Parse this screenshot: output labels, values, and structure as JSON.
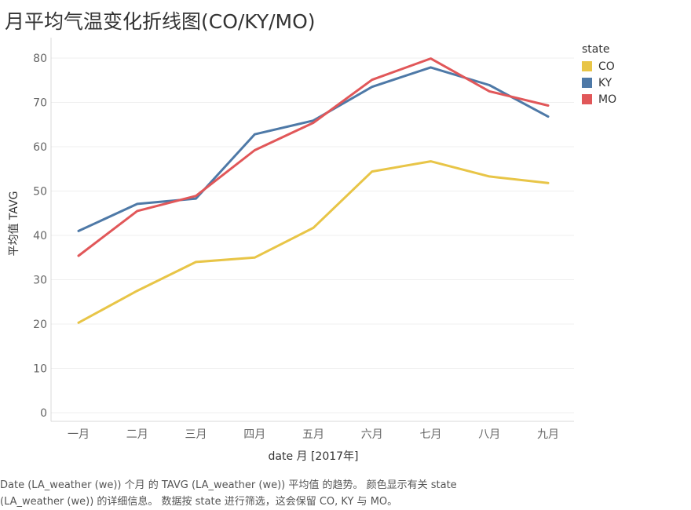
{
  "title": "月平均气温变化折线图(CO/KY/MO)",
  "legend": {
    "title": "state",
    "items": [
      {
        "label": "CO",
        "color": "#e8c547"
      },
      {
        "label": "KY",
        "color": "#4e79a7"
      },
      {
        "label": "MO",
        "color": "#e15759"
      }
    ]
  },
  "caption": {
    "line1": "Date (LA_weather (we)) 个月 的 TAVG (LA_weather (we)) 平均值 的趋势。 颜色显示有关 state",
    "line2": "(LA_weather (we)) 的详细信息。 数据按 state 进行筛选，这会保留 CO, KY 与 MO。"
  },
  "chart_data": {
    "type": "line",
    "xlabel": "date 月 [2017年]",
    "ylabel": "平均值 TAVG",
    "categories": [
      "一月",
      "二月",
      "三月",
      "四月",
      "五月",
      "六月",
      "七月",
      "八月",
      "九月"
    ],
    "yticks": [
      0,
      10,
      20,
      30,
      40,
      50,
      60,
      70,
      80
    ],
    "ylim": [
      0,
      82
    ],
    "grid": true,
    "legend_position": "right",
    "series": [
      {
        "name": "CO",
        "color": "#e8c547",
        "values": [
          20.3,
          27.5,
          34.0,
          35.0,
          41.7,
          54.4,
          56.7,
          53.3,
          51.8
        ]
      },
      {
        "name": "KY",
        "color": "#4e79a7",
        "values": [
          41.0,
          47.1,
          48.3,
          62.8,
          65.9,
          73.5,
          77.9,
          73.9,
          66.8
        ]
      },
      {
        "name": "MO",
        "color": "#e15759",
        "values": [
          35.4,
          45.5,
          48.9,
          59.2,
          65.4,
          75.1,
          79.9,
          72.5,
          69.3
        ]
      }
    ]
  }
}
